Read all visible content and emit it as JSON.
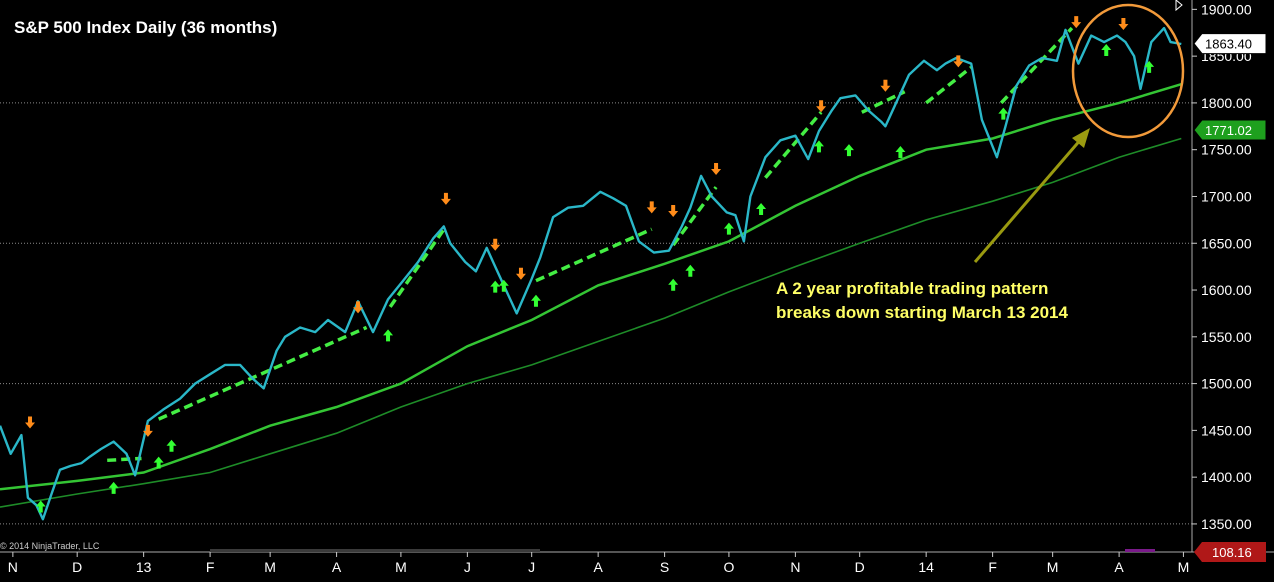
{
  "chart_data": {
    "type": "line",
    "title": "S&P 500 Index Daily (36 months)",
    "copyright": "© 2014 NinjaTrader, LLC",
    "ylim": [
      1320,
      1910
    ],
    "yticks": [
      {
        "value": 1900,
        "label": "1900.00"
      },
      {
        "value": 1850,
        "label": "1850.00"
      },
      {
        "value": 1800,
        "label": "1800.00"
      },
      {
        "value": 1750,
        "label": "1750.00"
      },
      {
        "value": 1700,
        "label": "1700.00"
      },
      {
        "value": 1650,
        "label": "1650.00"
      },
      {
        "value": 1600,
        "label": "1600.00"
      },
      {
        "value": 1550,
        "label": "1550.00"
      },
      {
        "value": 1500,
        "label": "1500.00"
      },
      {
        "value": 1450,
        "label": "1450.00"
      },
      {
        "value": 1400,
        "label": "1400.00"
      },
      {
        "value": 1350,
        "label": "1350.00"
      }
    ],
    "gridlines_at": [
      1800,
      1650,
      1500,
      1350
    ],
    "x_domain": [
      "2012-10-26",
      "2014-05-05"
    ],
    "xticks": [
      {
        "date": "2012-11-01",
        "label": "N"
      },
      {
        "date": "2012-12-01",
        "label": "D"
      },
      {
        "date": "2013-01-01",
        "label": "13"
      },
      {
        "date": "2013-02-01",
        "label": "F"
      },
      {
        "date": "2013-03-01",
        "label": "M"
      },
      {
        "date": "2013-04-01",
        "label": "A"
      },
      {
        "date": "2013-05-01",
        "label": "M"
      },
      {
        "date": "2013-06-01",
        "label": "J"
      },
      {
        "date": "2013-07-01",
        "label": "J"
      },
      {
        "date": "2013-08-01",
        "label": "A"
      },
      {
        "date": "2013-09-01",
        "label": "S"
      },
      {
        "date": "2013-10-01",
        "label": "O"
      },
      {
        "date": "2013-11-01",
        "label": "N"
      },
      {
        "date": "2013-12-01",
        "label": "D"
      },
      {
        "date": "2014-01-01",
        "label": "14"
      },
      {
        "date": "2014-02-01",
        "label": "F"
      },
      {
        "date": "2014-03-01",
        "label": "M"
      },
      {
        "date": "2014-04-01",
        "label": "A"
      },
      {
        "date": "2014-05-01",
        "label": "M"
      }
    ],
    "series": [
      {
        "color": "#2ab7c8",
        "x": [
          "2012-10-26",
          "2012-10-31",
          "2012-11-05",
          "2012-11-08",
          "2012-11-12",
          "2012-11-15",
          "2012-11-19",
          "2012-11-23",
          "2012-11-28",
          "2012-12-03",
          "2012-12-07",
          "2012-12-12",
          "2012-12-18",
          "2012-12-24",
          "2012-12-28",
          "2013-01-03",
          "2013-01-10",
          "2013-01-18",
          "2013-01-25",
          "2013-02-01",
          "2013-02-08",
          "2013-02-15",
          "2013-02-21",
          "2013-02-26",
          "2013-03-04",
          "2013-03-08",
          "2013-03-15",
          "2013-03-22",
          "2013-03-28",
          "2013-04-05",
          "2013-04-11",
          "2013-04-18",
          "2013-04-25",
          "2013-05-02",
          "2013-05-09",
          "2013-05-16",
          "2013-05-21",
          "2013-05-24",
          "2013-05-31",
          "2013-06-05",
          "2013-06-10",
          "2013-06-14",
          "2013-06-20",
          "2013-06-24",
          "2013-07-01",
          "2013-07-05",
          "2013-07-11",
          "2013-07-18",
          "2013-07-25",
          "2013-08-02",
          "2013-08-08",
          "2013-08-14",
          "2013-08-20",
          "2013-08-27",
          "2013-09-03",
          "2013-09-09",
          "2013-09-13",
          "2013-09-18",
          "2013-09-23",
          "2013-09-30",
          "2013-10-04",
          "2013-10-08",
          "2013-10-11",
          "2013-10-18",
          "2013-10-25",
          "2013-11-01",
          "2013-11-07",
          "2013-11-12",
          "2013-11-18",
          "2013-11-22",
          "2013-11-29",
          "2013-12-05",
          "2013-12-11",
          "2013-12-13",
          "2013-12-18",
          "2013-12-24",
          "2013-12-31",
          "2014-01-06",
          "2014-01-10",
          "2014-01-15",
          "2014-01-22",
          "2014-01-27",
          "2014-02-03",
          "2014-02-07",
          "2014-02-12",
          "2014-02-18",
          "2014-02-24",
          "2014-03-03",
          "2014-03-07",
          "2014-03-13",
          "2014-03-19",
          "2014-03-25",
          "2014-03-31",
          "2014-04-04",
          "2014-04-08",
          "2014-04-11",
          "2014-04-16",
          "2014-04-22",
          "2014-04-25",
          "2014-04-30"
        ],
        "values": [
          1455,
          1425,
          1445,
          1378,
          1370,
          1355,
          1382,
          1408,
          1412,
          1415,
          1422,
          1430,
          1438,
          1425,
          1402,
          1460,
          1472,
          1484,
          1500,
          1510,
          1520,
          1520,
          1505,
          1495,
          1535,
          1550,
          1560,
          1555,
          1568,
          1555,
          1588,
          1555,
          1590,
          1610,
          1630,
          1655,
          1668,
          1650,
          1630,
          1620,
          1645,
          1625,
          1595,
          1575,
          1612,
          1635,
          1678,
          1688,
          1690,
          1705,
          1698,
          1690,
          1652,
          1640,
          1642,
          1668,
          1688,
          1722,
          1700,
          1683,
          1680,
          1652,
          1700,
          1742,
          1760,
          1765,
          1740,
          1770,
          1792,
          1805,
          1808,
          1792,
          1780,
          1775,
          1800,
          1830,
          1845,
          1835,
          1842,
          1848,
          1842,
          1782,
          1742,
          1775,
          1818,
          1840,
          1848,
          1845,
          1878,
          1842,
          1872,
          1865,
          1872,
          1865,
          1850,
          1815,
          1865,
          1880,
          1865,
          1863
        ]
      },
      {
        "color": "#34c534",
        "x": [
          "2012-10-26",
          "2012-12-01",
          "2013-01-01",
          "2013-02-01",
          "2013-03-01",
          "2013-04-01",
          "2013-05-01",
          "2013-06-01",
          "2013-07-01",
          "2013-08-01",
          "2013-09-01",
          "2013-10-01",
          "2013-11-01",
          "2013-12-01",
          "2014-01-01",
          "2014-02-01",
          "2014-03-01",
          "2014-04-01",
          "2014-04-30"
        ],
        "values": [
          1387,
          1396,
          1405,
          1430,
          1455,
          1475,
          1500,
          1540,
          1568,
          1605,
          1628,
          1652,
          1690,
          1722,
          1750,
          1762,
          1782,
          1800,
          1820
        ]
      },
      {
        "color": "#1e8c28",
        "x": [
          "2012-10-26",
          "2012-12-01",
          "2013-01-01",
          "2013-02-01",
          "2013-03-01",
          "2013-04-01",
          "2013-05-01",
          "2013-06-01",
          "2013-07-01",
          "2013-08-01",
          "2013-09-01",
          "2013-10-01",
          "2013-11-01",
          "2013-12-01",
          "2014-01-01",
          "2014-02-01",
          "2014-03-01",
          "2014-04-01",
          "2014-04-30"
        ],
        "values": [
          1368,
          1382,
          1393,
          1405,
          1425,
          1447,
          1475,
          1500,
          1520,
          1545,
          1570,
          1598,
          1625,
          1650,
          1675,
          1695,
          1715,
          1742,
          1762
        ]
      }
    ],
    "trend_segments": [
      {
        "x": [
          "2012-12-15",
          "2012-12-31"
        ],
        "y": [
          1418,
          1420
        ]
      },
      {
        "x": [
          "2013-01-08",
          "2013-04-15"
        ],
        "y": [
          1462,
          1560
        ]
      },
      {
        "x": [
          "2013-04-26",
          "2013-05-22"
        ],
        "y": [
          1582,
          1668
        ]
      },
      {
        "x": [
          "2013-07-03",
          "2013-08-26"
        ],
        "y": [
          1610,
          1665
        ]
      },
      {
        "x": [
          "2013-09-05",
          "2013-09-25"
        ],
        "y": [
          1648,
          1710
        ]
      },
      {
        "x": [
          "2013-10-18",
          "2013-11-13"
        ],
        "y": [
          1720,
          1790
        ]
      },
      {
        "x": [
          "2013-12-02",
          "2013-12-22"
        ],
        "y": [
          1790,
          1812
        ]
      },
      {
        "x": [
          "2014-01-01",
          "2014-01-22"
        ],
        "y": [
          1800,
          1838
        ]
      },
      {
        "x": [
          "2014-02-05",
          "2014-03-10"
        ],
        "y": [
          1800,
          1880
        ]
      }
    ],
    "up_arrows": [
      {
        "date": "2012-11-14",
        "value": 1375
      },
      {
        "date": "2012-12-18",
        "value": 1395
      },
      {
        "date": "2013-01-08",
        "value": 1422
      },
      {
        "date": "2013-01-14",
        "value": 1440
      },
      {
        "date": "2013-04-25",
        "value": 1558
      },
      {
        "date": "2013-06-14",
        "value": 1610
      },
      {
        "date": "2013-06-18",
        "value": 1611
      },
      {
        "date": "2013-07-03",
        "value": 1595
      },
      {
        "date": "2013-09-05",
        "value": 1612
      },
      {
        "date": "2013-09-13",
        "value": 1627
      },
      {
        "date": "2013-10-01",
        "value": 1672
      },
      {
        "date": "2013-10-16",
        "value": 1693
      },
      {
        "date": "2013-11-12",
        "value": 1760
      },
      {
        "date": "2013-11-26",
        "value": 1756
      },
      {
        "date": "2013-12-20",
        "value": 1754
      },
      {
        "date": "2014-02-06",
        "value": 1795
      },
      {
        "date": "2014-03-26",
        "value": 1863
      },
      {
        "date": "2014-04-15",
        "value": 1845
      }
    ],
    "down_arrows": [
      {
        "date": "2012-11-09",
        "value": 1452
      },
      {
        "date": "2013-01-03",
        "value": 1443
      },
      {
        "date": "2013-04-11",
        "value": 1575
      },
      {
        "date": "2013-05-22",
        "value": 1691
      },
      {
        "date": "2013-06-14",
        "value": 1642
      },
      {
        "date": "2013-06-26",
        "value": 1611
      },
      {
        "date": "2013-08-26",
        "value": 1682
      },
      {
        "date": "2013-09-05",
        "value": 1678
      },
      {
        "date": "2013-09-25",
        "value": 1723
      },
      {
        "date": "2013-11-13",
        "value": 1790
      },
      {
        "date": "2013-12-13",
        "value": 1812
      },
      {
        "date": "2014-01-16",
        "value": 1838
      },
      {
        "date": "2014-03-12",
        "value": 1880
      },
      {
        "date": "2014-04-03",
        "value": 1878
      }
    ],
    "annotation": {
      "lines": [
        "A 2 year profitable trading pattern",
        "breaks down starting March 13 2014"
      ],
      "arrow_color": "#9a9a10",
      "circle_color": "#f29a3a"
    },
    "price_tags": [
      {
        "label": "1863.40",
        "value": 1863.4,
        "bg": "#ffffff",
        "fg": "#000000",
        "border": "#000000"
      },
      {
        "label": "1771.02",
        "value": 1771.02,
        "bg": "#1ea01e",
        "fg": "#ffffff",
        "border": "#000000"
      }
    ],
    "lower_tag": {
      "label": "108.16",
      "bg": "#b01818",
      "fg": "#ffffff"
    }
  }
}
